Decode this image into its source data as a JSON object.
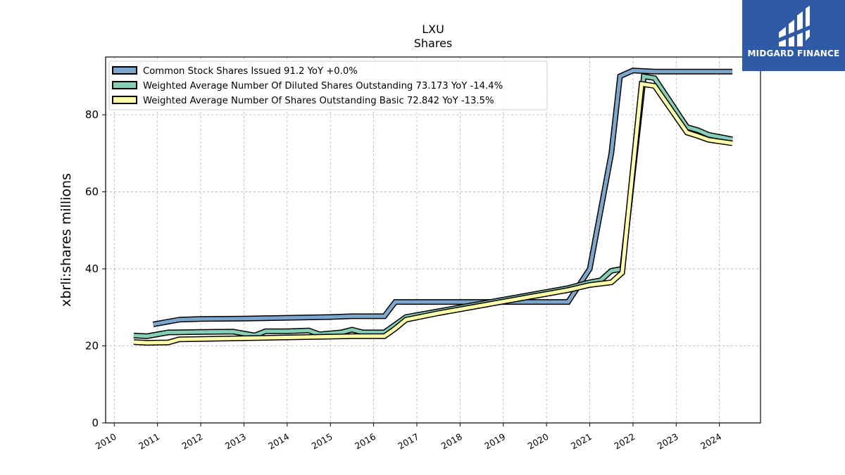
{
  "chart_data": {
    "type": "line",
    "title": "LXU",
    "subtitle": "Shares",
    "ylabel": "xbrli:shares millions",
    "xlabel": "",
    "xlim": [
      2009.8,
      2024.95
    ],
    "ylim": [
      0,
      95
    ],
    "x_ticks": [
      2010,
      2011,
      2012,
      2013,
      2014,
      2015,
      2016,
      2017,
      2018,
      2019,
      2020,
      2021,
      2022,
      2023,
      2024
    ],
    "y_ticks": [
      0,
      20,
      40,
      60,
      80
    ],
    "grid": true,
    "legend_position": "top-left",
    "series": [
      {
        "name": "Common Stock Shares Issued  91.2 YoY +0.0%",
        "color": "#7ba7cc",
        "points": [
          [
            2010.9,
            25.6
          ],
          [
            2011.5,
            26.8
          ],
          [
            2012.0,
            27.0
          ],
          [
            2013.0,
            27.1
          ],
          [
            2014.0,
            27.3
          ],
          [
            2015.0,
            27.5
          ],
          [
            2015.5,
            27.7
          ],
          [
            2016.25,
            27.7
          ],
          [
            2016.5,
            31.4
          ],
          [
            2017.0,
            31.4
          ],
          [
            2018.0,
            31.4
          ],
          [
            2019.0,
            31.4
          ],
          [
            2020.0,
            31.4
          ],
          [
            2020.5,
            31.4
          ],
          [
            2021.0,
            40.0
          ],
          [
            2021.5,
            70.0
          ],
          [
            2021.7,
            90.0
          ],
          [
            2022.0,
            91.5
          ],
          [
            2022.5,
            91.2
          ],
          [
            2023.0,
            91.2
          ],
          [
            2024.3,
            91.2
          ]
        ]
      },
      {
        "name": "Weighted Average Number Of Diluted Shares Outstanding  73.173 YoY -14.4%",
        "color": "#85ceb8",
        "points": [
          [
            2010.45,
            22.7
          ],
          [
            2010.75,
            22.5
          ],
          [
            2011.25,
            23.5
          ],
          [
            2012.0,
            23.6
          ],
          [
            2012.75,
            23.7
          ],
          [
            2013.25,
            22.7
          ],
          [
            2013.5,
            23.8
          ],
          [
            2014.0,
            23.8
          ],
          [
            2014.5,
            24.0
          ],
          [
            2014.75,
            23.0
          ],
          [
            2015.25,
            23.5
          ],
          [
            2015.5,
            24.2
          ],
          [
            2015.75,
            23.5
          ],
          [
            2016.25,
            23.5
          ],
          [
            2016.5,
            25.5
          ],
          [
            2016.75,
            27.5
          ],
          [
            2017.5,
            29.0
          ],
          [
            2018.5,
            31.0
          ],
          [
            2019.5,
            33.0
          ],
          [
            2020.5,
            35.0
          ],
          [
            2021.0,
            36.5
          ],
          [
            2021.25,
            37.0
          ],
          [
            2021.5,
            39.5
          ],
          [
            2021.75,
            40.0
          ],
          [
            2022.25,
            90.0
          ],
          [
            2022.5,
            89.5
          ],
          [
            2023.25,
            76.8
          ],
          [
            2023.5,
            76.0
          ],
          [
            2023.75,
            74.8
          ],
          [
            2024.3,
            73.6
          ]
        ]
      },
      {
        "name": "Weighted Average Number Of Shares Outstanding Basic  72.842 YoY -13.5%",
        "color": "#ffffaa",
        "points": [
          [
            2010.45,
            21.0
          ],
          [
            2010.75,
            20.8
          ],
          [
            2011.25,
            20.9
          ],
          [
            2011.5,
            21.7
          ],
          [
            2012.0,
            21.8
          ],
          [
            2013.0,
            22.0
          ],
          [
            2014.0,
            22.2
          ],
          [
            2015.0,
            22.4
          ],
          [
            2015.5,
            22.5
          ],
          [
            2016.25,
            22.5
          ],
          [
            2016.5,
            24.5
          ],
          [
            2016.75,
            26.8
          ],
          [
            2017.5,
            28.5
          ],
          [
            2018.5,
            30.5
          ],
          [
            2019.5,
            32.5
          ],
          [
            2020.5,
            34.5
          ],
          [
            2021.0,
            35.8
          ],
          [
            2021.5,
            36.5
          ],
          [
            2021.75,
            39.0
          ],
          [
            2022.2,
            88.0
          ],
          [
            2022.5,
            87.5
          ],
          [
            2023.25,
            75.4
          ],
          [
            2023.5,
            74.5
          ],
          [
            2023.75,
            73.5
          ],
          [
            2024.3,
            72.6
          ]
        ]
      }
    ]
  },
  "logo": {
    "text": "MIDGARD FINANCE",
    "background": "#2f5aa8"
  }
}
